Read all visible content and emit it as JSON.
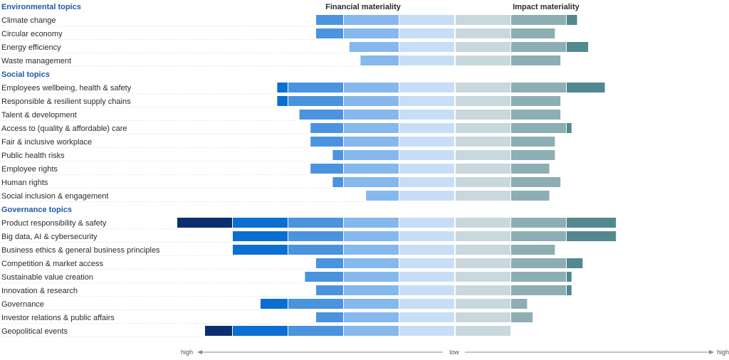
{
  "chart_data": {
    "type": "bar",
    "subtype": "diverging-stacked-bar",
    "headers": {
      "financial": "Financial materiality",
      "impact": "Impact materiality"
    },
    "axis": {
      "left": "high",
      "center": "low",
      "right": "high"
    },
    "x_units": "materiality level (0 = low, 5 = high)",
    "xlim": [
      0,
      5
    ],
    "colors": {
      "financial": [
        "#c8def7",
        "#85b8ec",
        "#4a93de",
        "#0a6fd1",
        "#0b2f6e"
      ],
      "impact": [
        "#c8d8dc",
        "#8daeb3",
        "#528890",
        "#15606a",
        "#0e4f57"
      ]
    },
    "groups": [
      {
        "title": "Environmental topics",
        "topics": [
          {
            "label": "Climate change",
            "financial": 2.5,
            "impact": 2.2
          },
          {
            "label": "Circular economy",
            "financial": 2.5,
            "impact": 1.8
          },
          {
            "label": "Energy efficiency",
            "financial": 1.9,
            "impact": 2.4
          },
          {
            "label": "Waste management",
            "financial": 1.7,
            "impact": 1.9
          }
        ]
      },
      {
        "title": "Social topics",
        "topics": [
          {
            "label": "Employees wellbeing, health & safety",
            "financial": 3.2,
            "impact": 2.7
          },
          {
            "label": "Responsible & resilient supply chains",
            "financial": 3.2,
            "impact": 1.9
          },
          {
            "label": "Talent & development",
            "financial": 2.8,
            "impact": 1.9
          },
          {
            "label": "Access to (quality & affordable) care",
            "financial": 2.6,
            "impact": 2.1
          },
          {
            "label": "Fair & inclusive workplace",
            "financial": 2.6,
            "impact": 1.8
          },
          {
            "label": "Public health risks",
            "financial": 2.2,
            "impact": 1.8
          },
          {
            "label": "Employee rights",
            "financial": 2.6,
            "impact": 1.7
          },
          {
            "label": "Human rights",
            "financial": 2.2,
            "impact": 1.9
          },
          {
            "label": "Social inclusion & engagement",
            "financial": 1.6,
            "impact": 1.7
          }
        ]
      },
      {
        "title": "Governance topics",
        "topics": [
          {
            "label": "Product responsibility & safety",
            "financial": 5.0,
            "impact": 2.9
          },
          {
            "label": "Big data, AI & cybersecurity",
            "financial": 4.0,
            "impact": 2.9
          },
          {
            "label": "Business ethics & general business principles",
            "financial": 4.0,
            "impact": 1.8
          },
          {
            "label": "Competition & market access",
            "financial": 2.5,
            "impact": 2.3
          },
          {
            "label": "Sustainable value creation",
            "financial": 2.7,
            "impact": 2.1
          },
          {
            "label": "Innovation & research",
            "financial": 2.5,
            "impact": 2.1
          },
          {
            "label": "Governance",
            "financial": 3.5,
            "impact": 1.3
          },
          {
            "label": "Investor relations & public affairs",
            "financial": 2.5,
            "impact": 1.4
          },
          {
            "label": "Geopolitical events",
            "financial": 4.5,
            "impact": 1.0
          }
        ]
      }
    ]
  }
}
